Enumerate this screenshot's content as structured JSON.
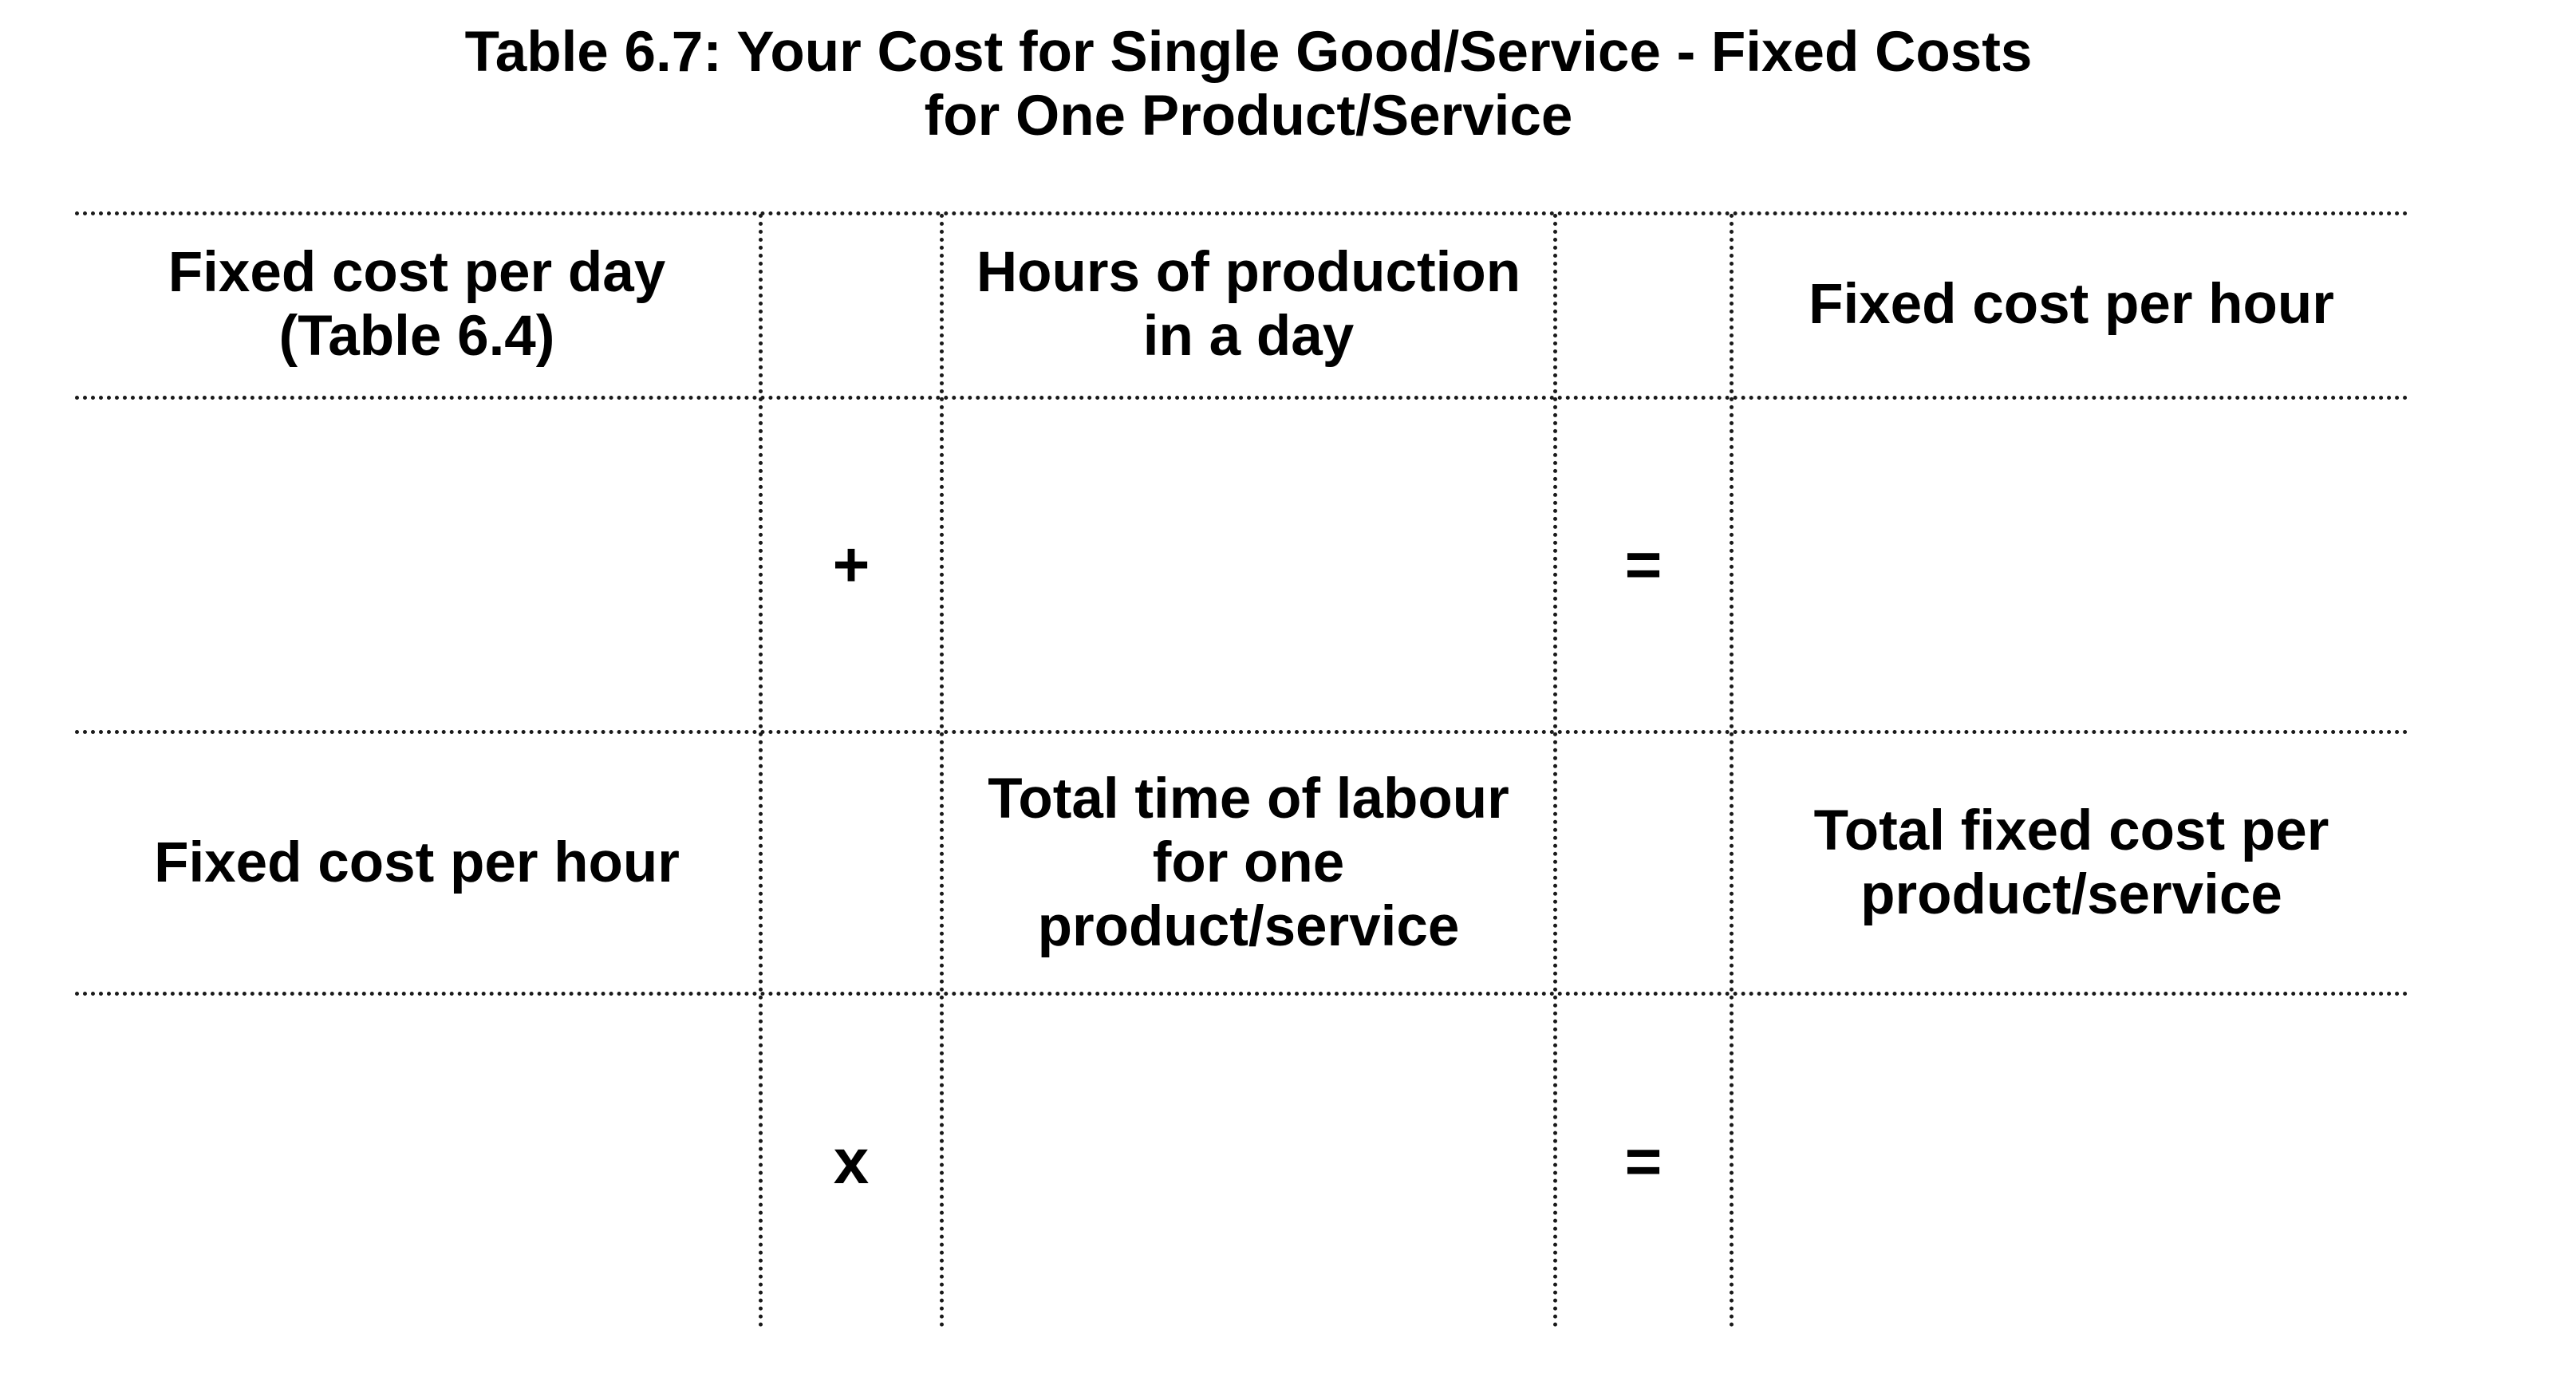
{
  "title": {
    "line1": "Table 6.7: Your Cost for Single Good/Service - Fixed Costs",
    "line2": "for One Product/Service"
  },
  "row1_headers": {
    "col1": "Fixed cost per day\n(Table 6.4)",
    "col2": "Hours of production\nin a day",
    "col3": "Fixed cost per hour"
  },
  "row1_operators": {
    "op1": "+",
    "op2": "="
  },
  "row2_headers": {
    "col1": "Fixed cost per hour",
    "col2": "Total time of labour\nfor one\nproduct/service",
    "col3": "Total fixed cost per\nproduct/service"
  },
  "row2_operators": {
    "op1": "x",
    "op2": "="
  }
}
